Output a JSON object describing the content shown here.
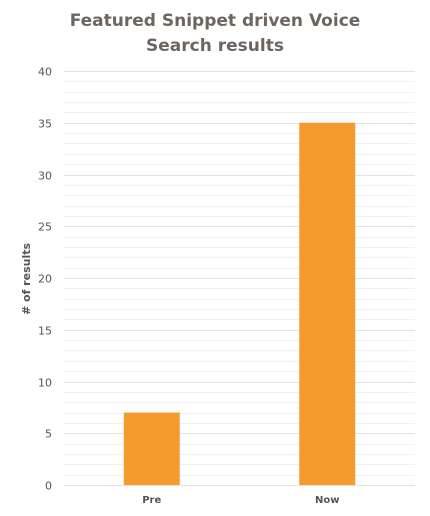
{
  "chart_data": {
    "type": "bar",
    "title_lines": [
      "Featured Snippet driven Voice",
      "Search results"
    ],
    "xlabel": "",
    "ylabel": "# of results",
    "categories": [
      "Pre",
      "Now"
    ],
    "series": [
      {
        "values": [
          7,
          35
        ],
        "color": "#f79a2d"
      }
    ],
    "ylim": [
      0,
      40
    ],
    "y_ticks": [
      0,
      5,
      10,
      15,
      20,
      25,
      30,
      35,
      40
    ],
    "grid": true,
    "minor_grid": true,
    "colors": {
      "bar": "#f79a2d",
      "major_grid": "#e3e3e3",
      "minor_grid": "#f1f1f1",
      "title": "#6d6560",
      "text": "#555555"
    }
  }
}
